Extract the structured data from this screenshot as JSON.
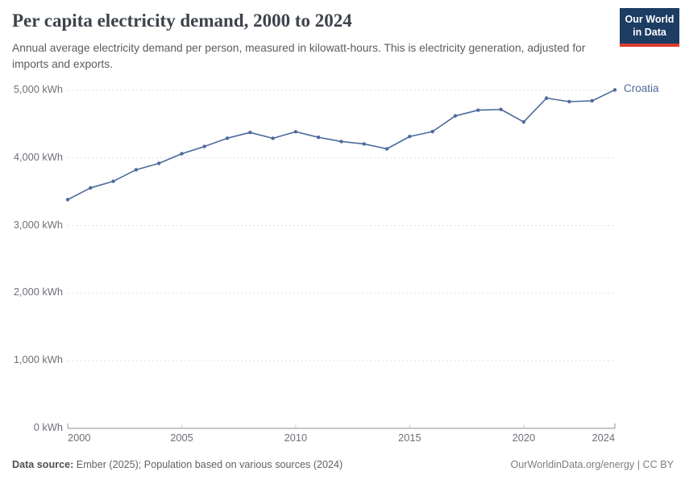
{
  "header": {
    "title": "Per capita electricity demand, 2000 to 2024",
    "subtitle": "Annual average electricity demand per person, measured in kilowatt-hours. This is electricity generation, adjusted for imports and exports."
  },
  "logo": {
    "line1": "Our World",
    "line2": "in Data",
    "bg_color": "#1d3d63",
    "accent_color": "#dc3b2f"
  },
  "chart_data": {
    "type": "line",
    "title": "Per capita electricity demand, 2000 to 2024",
    "xlabel": "",
    "ylabel": "kWh",
    "xlim": [
      2000,
      2024
    ],
    "ylim": [
      0,
      5000
    ],
    "x_ticks": [
      2000,
      2005,
      2010,
      2015,
      2020,
      2024
    ],
    "y_ticks": [
      0,
      1000,
      2000,
      3000,
      4000,
      5000
    ],
    "y_tick_suffix": " kWh",
    "grid": "horizontal-dashed",
    "legend_position": "end-of-line-label",
    "x": [
      2000,
      2001,
      2002,
      2003,
      2004,
      2005,
      2006,
      2007,
      2008,
      2009,
      2010,
      2011,
      2012,
      2013,
      2014,
      2015,
      2016,
      2017,
      2018,
      2019,
      2020,
      2021,
      2022,
      2023,
      2024
    ],
    "series": [
      {
        "name": "Croatia",
        "color": "#4c6a9c",
        "values": [
          3383,
          3557,
          3655,
          3825,
          3920,
          4062,
          4170,
          4292,
          4377,
          4290,
          4388,
          4305,
          4243,
          4207,
          4135,
          4317,
          4390,
          4622,
          4707,
          4718,
          4532,
          4885,
          4833,
          4845,
          5007
        ]
      }
    ]
  },
  "footer": {
    "source_label": "Data source:",
    "source_text": " Ember (2025); Population based on various sources (2024)",
    "credit": "OurWorldinData.org/energy | CC BY"
  }
}
